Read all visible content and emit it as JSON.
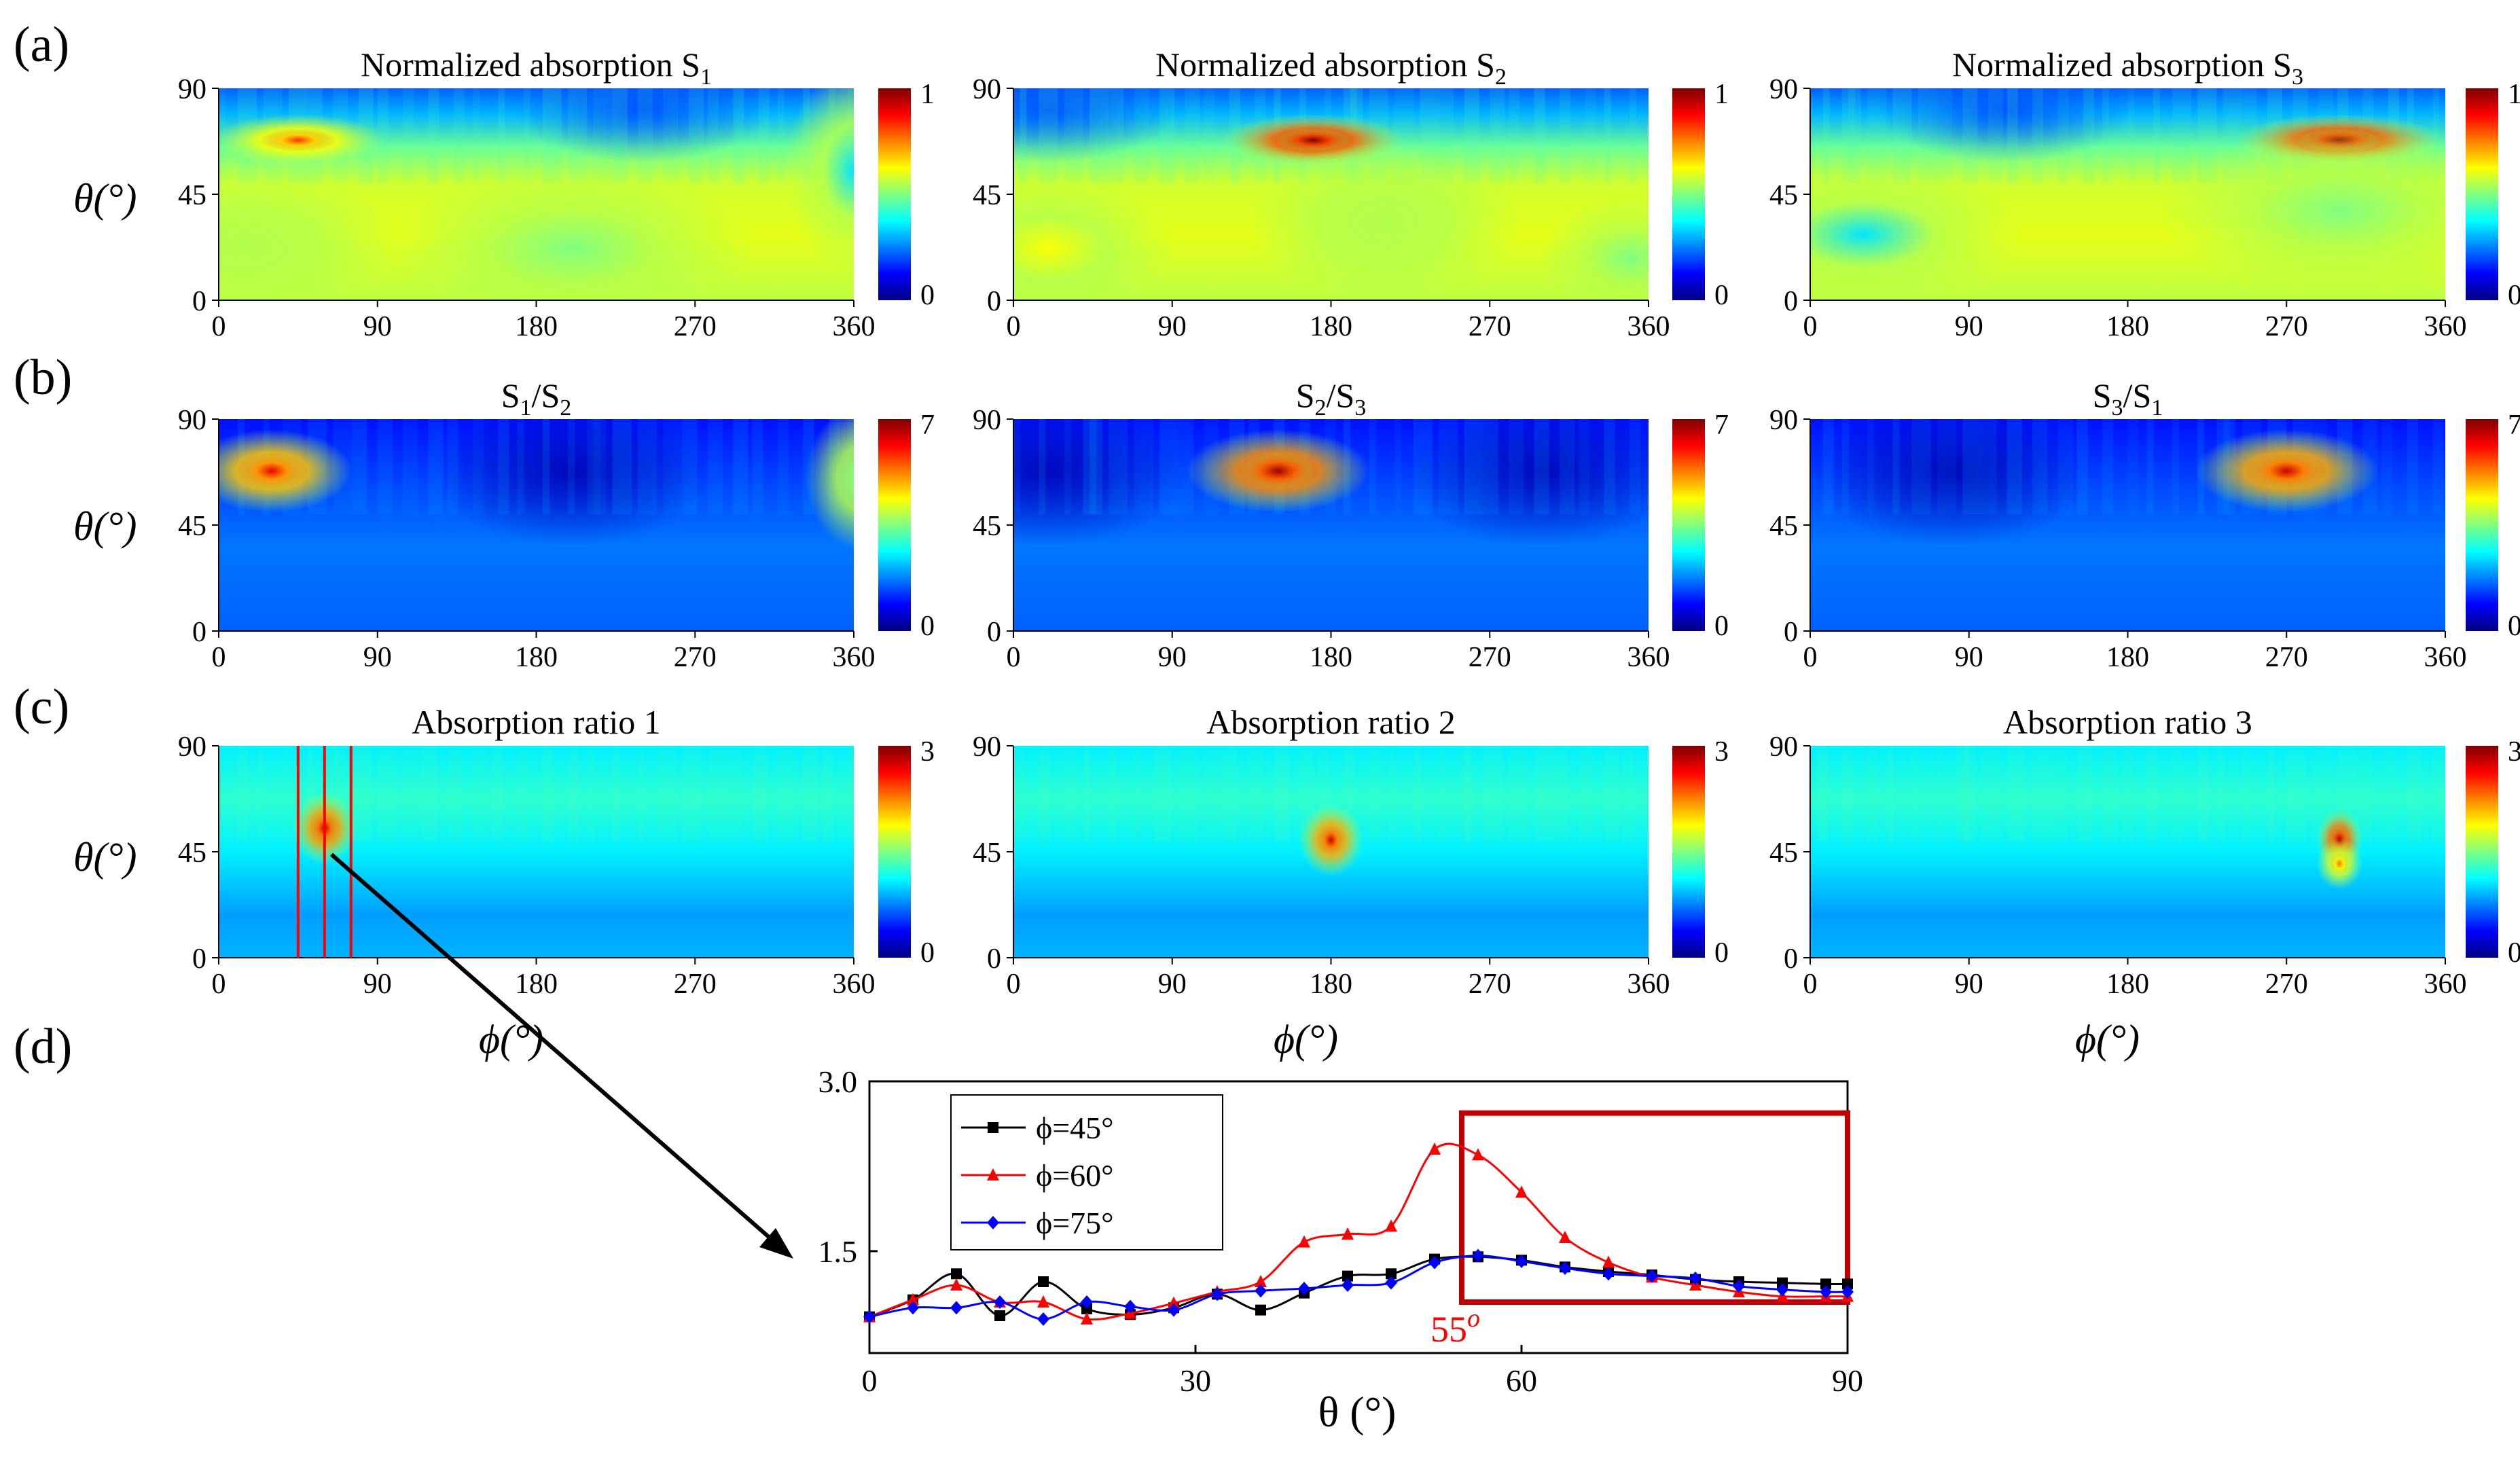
{
  "colors": {
    "jet": [
      "#00007f",
      "#0000ff",
      "#0080ff",
      "#00ffff",
      "#80ff80",
      "#ffff00",
      "#ff8000",
      "#ff0000",
      "#7f0000"
    ],
    "series_black": "#000000",
    "series_red": "#ff0000",
    "series_blue": "#0000ff",
    "highlight": "#c00000",
    "marker_red": "#ff0000"
  },
  "panel_labels": [
    "(a)",
    "(b)",
    "(c)",
    "(d)"
  ],
  "axis_titles": {
    "theta": "θ(°)",
    "phi": "ϕ(°)"
  },
  "heatmaps": [
    {
      "row": 0,
      "col": 0,
      "title": "Normalized absorption S",
      "title_sub": "1",
      "cbar_max": "1",
      "cbar_min": "0",
      "vmax": 1,
      "blobs": [
        {
          "phi": 45,
          "theta": 68,
          "w": 38,
          "h": 5,
          "a": 0.78
        },
        {
          "phi": 15,
          "theta": 24,
          "w": 70,
          "h": 14,
          "a": 0.55
        },
        {
          "phi": 200,
          "theta": 22,
          "w": 80,
          "h": 16,
          "a": 0.5
        },
        {
          "phi": 360,
          "theta": 55,
          "w": 30,
          "h": 20,
          "a": 0.35
        }
      ]
    },
    {
      "row": 0,
      "col": 1,
      "title": "Normalized absorption S",
      "title_sub": "2",
      "cbar_max": "1",
      "cbar_min": "0",
      "vmax": 1,
      "blobs": [
        {
          "phi": 170,
          "theta": 68,
          "w": 40,
          "h": 5,
          "a": 0.98
        },
        {
          "phi": 20,
          "theta": 22,
          "w": 55,
          "h": 14,
          "a": 0.62
        },
        {
          "phi": 210,
          "theta": 32,
          "w": 60,
          "h": 16,
          "a": 0.55
        },
        {
          "phi": 350,
          "theta": 18,
          "w": 40,
          "h": 12,
          "a": 0.5
        }
      ]
    },
    {
      "row": 0,
      "col": 2,
      "title": "Normalized absorption S",
      "title_sub": "3",
      "cbar_max": "1",
      "cbar_min": "0",
      "vmax": 1,
      "blobs": [
        {
          "phi": 300,
          "theta": 68,
          "w": 45,
          "h": 5,
          "a": 0.98
        },
        {
          "phi": 300,
          "theta": 38,
          "w": 80,
          "h": 16,
          "a": 0.5
        },
        {
          "phi": 30,
          "theta": 28,
          "w": 70,
          "h": 14,
          "a": 0.35
        }
      ]
    },
    {
      "row": 1,
      "col": 0,
      "title": "S",
      "title_sub": "1",
      "title_tail": "/S",
      "title_sub2": "2",
      "cbar_max": "7",
      "cbar_min": "0",
      "vmax": 7,
      "blobs": [
        {
          "phi": 30,
          "theta": 68,
          "w": 35,
          "h": 8,
          "a": 0.85
        },
        {
          "phi": 365,
          "theta": 65,
          "w": 25,
          "h": 14,
          "a": 0.5
        }
      ]
    },
    {
      "row": 1,
      "col": 1,
      "title": "S",
      "title_sub": "2",
      "title_tail": "/S",
      "title_sub2": "3",
      "cbar_max": "7",
      "cbar_min": "0",
      "vmax": 7,
      "blobs": [
        {
          "phi": 150,
          "theta": 68,
          "w": 40,
          "h": 8,
          "a": 0.92
        }
      ]
    },
    {
      "row": 1,
      "col": 2,
      "title": "S",
      "title_sub": "3",
      "title_tail": "/S",
      "title_sub2": "1",
      "cbar_max": "7",
      "cbar_min": "0",
      "vmax": 7,
      "blobs": [
        {
          "phi": 270,
          "theta": 68,
          "w": 40,
          "h": 8,
          "a": 0.88
        }
      ]
    },
    {
      "row": 2,
      "col": 0,
      "title": "Absorption ratio 1",
      "cbar_max": "3",
      "cbar_min": "0",
      "vmax": 3,
      "blobs": [
        {
          "phi": 60,
          "theta": 55,
          "w": 14,
          "h": 7,
          "a": 0.9
        }
      ]
    },
    {
      "row": 2,
      "col": 1,
      "title": "Absorption ratio 2",
      "cbar_max": "3",
      "cbar_min": "0",
      "vmax": 3,
      "blobs": [
        {
          "phi": 180,
          "theta": 50,
          "w": 14,
          "h": 7,
          "a": 0.88
        }
      ]
    },
    {
      "row": 2,
      "col": 2,
      "title": "Absorption ratio 3",
      "cbar_max": "3",
      "cbar_min": "0",
      "vmax": 3,
      "blobs": [
        {
          "phi": 300,
          "theta": 50,
          "w": 10,
          "h": 6,
          "a": 0.95
        },
        {
          "phi": 300,
          "theta": 40,
          "w": 10,
          "h": 5,
          "a": 0.72
        }
      ]
    }
  ],
  "red_lines_phi": [
    45,
    60,
    75
  ],
  "chart_data": [
    {
      "type": "heatmap",
      "panels": "a-c",
      "description_axes": {
        "x": "ϕ(°)",
        "y": "θ(°)"
      },
      "xlim": [
        0,
        360
      ],
      "ylim": [
        0,
        90
      ],
      "xticks": [
        "0",
        "90",
        "180",
        "270",
        "360"
      ],
      "yticks": [
        "0",
        "45",
        "90"
      ],
      "colorbar_ranges": {
        "a": [
          0,
          1
        ],
        "b": [
          0,
          7
        ],
        "c": [
          0,
          3
        ]
      }
    },
    {
      "type": "line",
      "panel": "d",
      "xlabel": "θ (°)",
      "xlim": [
        0,
        90
      ],
      "ylim": [
        0.6,
        3.0
      ],
      "xticks": [
        "0",
        "30",
        "60",
        "90"
      ],
      "yticks": [
        "1.5",
        "3.0"
      ],
      "annotation": "55",
      "annotation_sup": "o",
      "highlight_box": {
        "x0": 54.5,
        "x1": 90,
        "y0": 1.05,
        "y1": 2.72
      },
      "series": [
        {
          "name": "ϕ=45°",
          "color": "#000000",
          "marker": "square",
          "x": [
            0,
            4,
            8,
            12,
            16,
            20,
            24,
            28,
            32,
            36,
            40,
            44,
            48,
            52,
            56,
            60,
            64,
            68,
            72,
            76,
            80,
            84,
            88,
            90
          ],
          "y": [
            0.92,
            1.07,
            1.3,
            0.93,
            1.23,
            0.99,
            0.94,
            1.0,
            1.12,
            0.98,
            1.13,
            1.28,
            1.3,
            1.43,
            1.45,
            1.42,
            1.36,
            1.32,
            1.29,
            1.25,
            1.23,
            1.22,
            1.21,
            1.21
          ]
        },
        {
          "name": "ϕ=60°",
          "color": "#ff0000",
          "marker": "triangle",
          "x": [
            0,
            4,
            8,
            12,
            16,
            20,
            24,
            28,
            32,
            36,
            40,
            44,
            48,
            52,
            56,
            60,
            64,
            68,
            72,
            76,
            80,
            84,
            88,
            90
          ],
          "y": [
            0.92,
            1.07,
            1.2,
            1.05,
            1.05,
            0.9,
            0.95,
            1.04,
            1.14,
            1.23,
            1.58,
            1.65,
            1.72,
            2.4,
            2.35,
            2.02,
            1.62,
            1.4,
            1.27,
            1.2,
            1.14,
            1.1,
            1.1,
            1.1
          ]
        },
        {
          "name": "ϕ=75°",
          "color": "#0000ff",
          "marker": "diamond",
          "x": [
            0,
            4,
            8,
            12,
            16,
            20,
            24,
            28,
            32,
            36,
            40,
            44,
            48,
            52,
            56,
            60,
            64,
            68,
            72,
            76,
            80,
            84,
            88,
            90
          ],
          "y": [
            0.92,
            1.0,
            1.0,
            1.05,
            0.9,
            1.05,
            1.01,
            0.98,
            1.12,
            1.15,
            1.17,
            1.2,
            1.22,
            1.4,
            1.46,
            1.41,
            1.35,
            1.3,
            1.28,
            1.26,
            1.19,
            1.16,
            1.14,
            1.14
          ]
        }
      ]
    }
  ]
}
